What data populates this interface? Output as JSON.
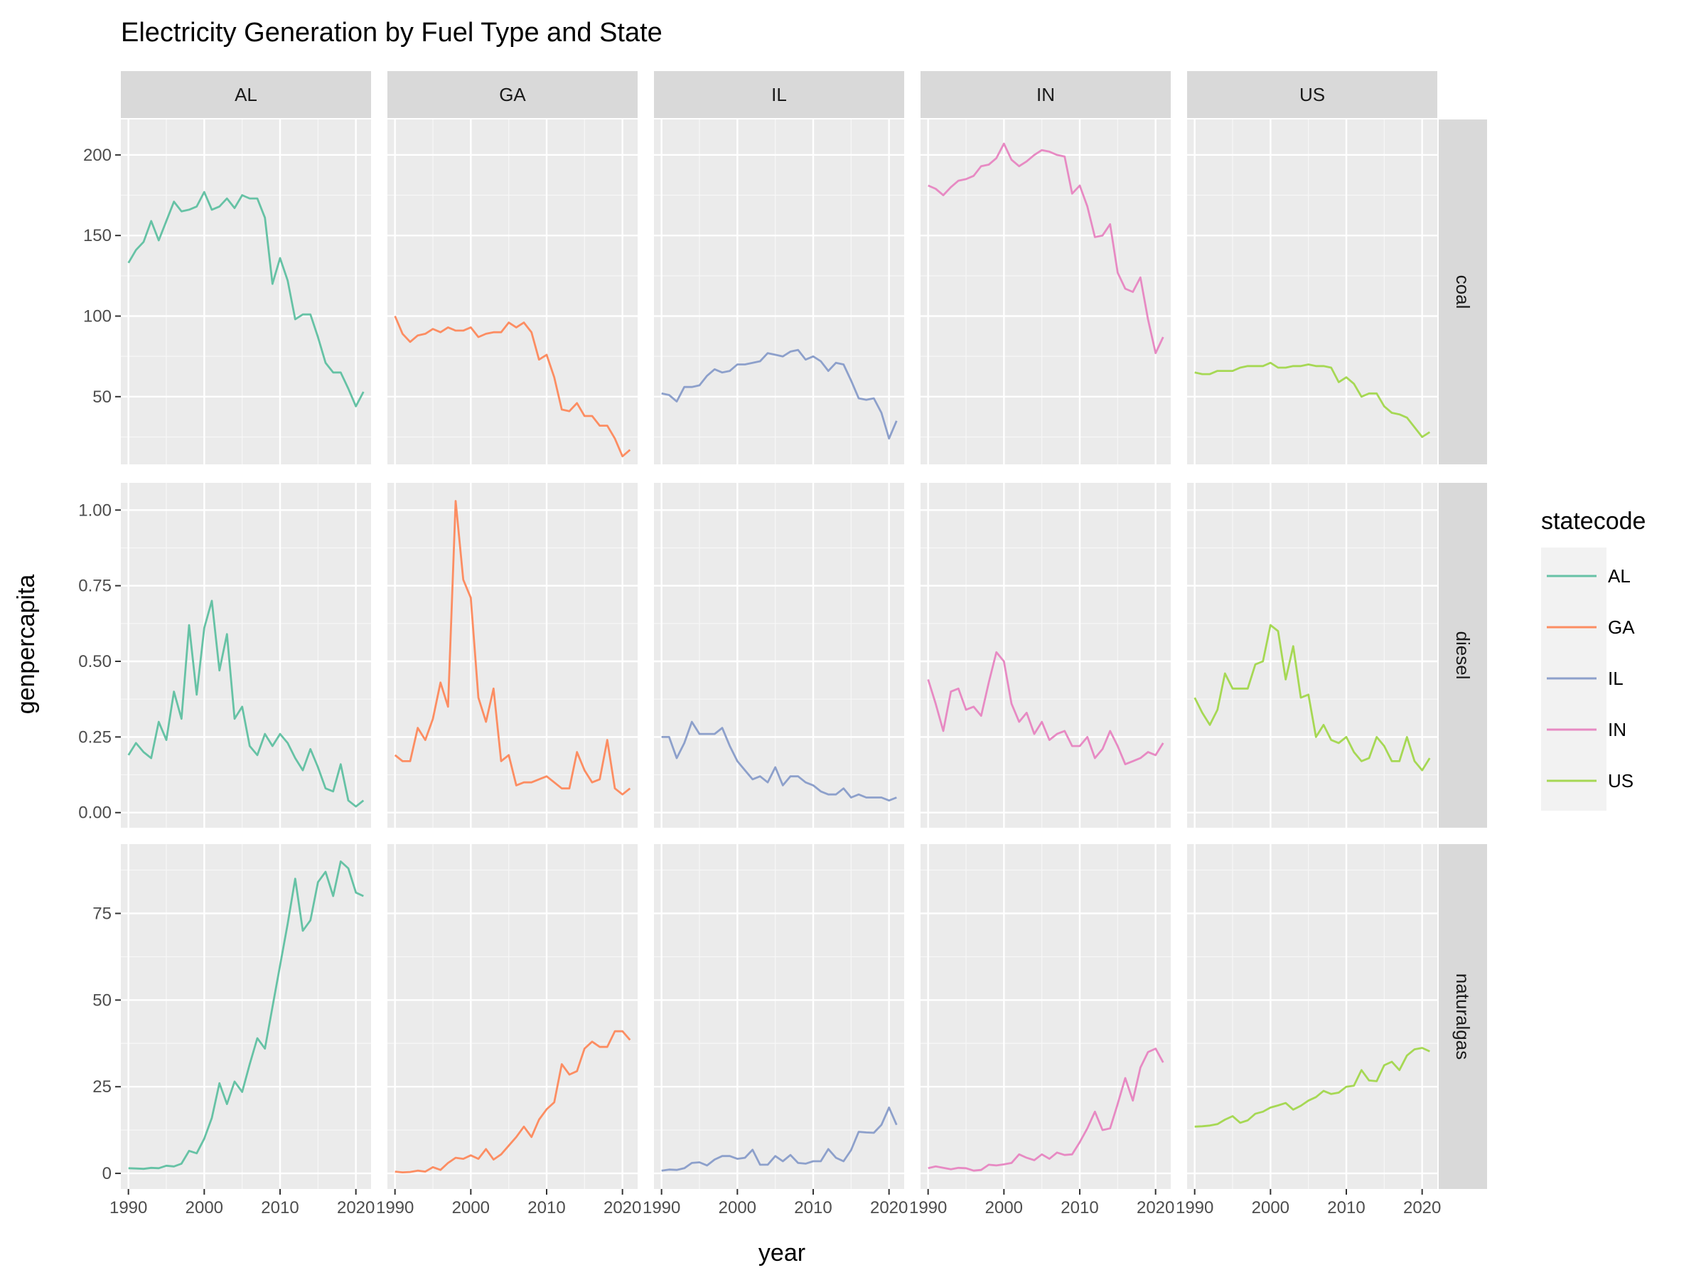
{
  "chart_data": {
    "type": "line",
    "title": "Electricity Generation by Fuel Type and State",
    "xlabel": "year",
    "ylabel": "genpercapita",
    "facet_columns": [
      "AL",
      "GA",
      "IL",
      "IN",
      "US"
    ],
    "facet_rows": [
      "coal",
      "diesel",
      "naturalgas"
    ],
    "x": [
      1990,
      1991,
      1992,
      1993,
      1994,
      1995,
      1996,
      1997,
      1998,
      1999,
      2000,
      2001,
      2002,
      2003,
      2004,
      2005,
      2006,
      2007,
      2008,
      2009,
      2010,
      2011,
      2012,
      2013,
      2014,
      2015,
      2016,
      2017,
      2018,
      2019,
      2020,
      2021
    ],
    "x_ticks": [
      1990,
      2000,
      2010,
      2020
    ],
    "x_tick_labels": [
      "1990",
      "2000",
      "2010",
      "2020"
    ],
    "xlim": [
      1989,
      2022
    ],
    "rows": [
      {
        "name": "coal",
        "ylim": [
          8,
          222
        ],
        "y_ticks": [
          50,
          100,
          150,
          200
        ],
        "y_tick_labels": [
          "50",
          "100",
          "150",
          "200"
        ]
      },
      {
        "name": "diesel",
        "ylim": [
          -0.05,
          1.09
        ],
        "y_ticks": [
          0,
          0.25,
          0.5,
          0.75,
          1.0
        ],
        "y_tick_labels": [
          "0.00",
          "0.25",
          "0.50",
          "0.75",
          "1.00"
        ]
      },
      {
        "name": "naturalgas",
        "ylim": [
          -4.5,
          95
        ],
        "y_ticks": [
          0,
          25,
          50,
          75
        ],
        "y_tick_labels": [
          "0",
          "25",
          "50",
          "75"
        ]
      }
    ],
    "series": [
      {
        "name": "AL",
        "color": "#66C2A5",
        "coal": [
          133,
          141,
          146,
          159,
          147,
          159,
          171,
          165,
          166,
          168,
          177,
          166,
          168,
          173,
          167,
          175,
          173,
          173,
          161,
          120,
          136,
          122,
          98,
          101,
          101,
          87,
          71,
          65,
          65,
          55,
          44,
          53
        ],
        "diesel": [
          0.19,
          0.23,
          0.2,
          0.18,
          0.3,
          0.24,
          0.4,
          0.31,
          0.62,
          0.39,
          0.61,
          0.7,
          0.47,
          0.59,
          0.31,
          0.35,
          0.22,
          0.19,
          0.26,
          0.22,
          0.26,
          0.23,
          0.18,
          0.14,
          0.21,
          0.15,
          0.08,
          0.07,
          0.16,
          0.04,
          0.02,
          0.04
        ],
        "naturalgas": [
          1.5,
          1.4,
          1.3,
          1.6,
          1.5,
          2.2,
          2,
          2.8,
          6.5,
          5.8,
          10,
          16,
          26,
          20,
          26.5,
          23.5,
          31.5,
          39,
          36,
          48,
          60,
          72,
          85,
          70,
          73,
          84,
          87,
          80,
          90,
          88,
          81,
          80
        ]
      },
      {
        "name": "GA",
        "color": "#FC8D62",
        "coal": [
          100,
          89,
          84,
          88,
          89,
          92,
          90,
          93,
          91,
          91,
          93,
          87,
          89,
          90,
          90,
          96,
          93,
          96,
          90,
          73,
          76,
          62,
          42,
          41,
          46,
          38,
          38,
          32,
          32,
          24,
          13,
          17
        ],
        "diesel": [
          0.19,
          0.17,
          0.17,
          0.28,
          0.24,
          0.31,
          0.43,
          0.35,
          1.03,
          0.77,
          0.71,
          0.38,
          0.3,
          0.41,
          0.17,
          0.19,
          0.09,
          0.1,
          0.1,
          0.11,
          0.12,
          0.1,
          0.08,
          0.08,
          0.2,
          0.14,
          0.1,
          0.11,
          0.24,
          0.08,
          0.06,
          0.08
        ],
        "naturalgas": [
          0.5,
          0.3,
          0.4,
          0.8,
          0.5,
          1.8,
          1,
          3,
          4.5,
          4.2,
          5.2,
          4.2,
          7,
          4,
          5.5,
          8,
          10.5,
          13.5,
          10.5,
          15.5,
          18.5,
          20.5,
          31.5,
          28.5,
          29.5,
          36,
          38,
          36.5,
          36.5,
          41,
          41,
          38.5
        ]
      },
      {
        "name": "IL",
        "color": "#8DA0CB",
        "coal": [
          52,
          51,
          47,
          56,
          56,
          57,
          63,
          67,
          65,
          66,
          70,
          70,
          71,
          72,
          77,
          76,
          75,
          78,
          79,
          73,
          75,
          72,
          66,
          71,
          70,
          60,
          49,
          48,
          49,
          40,
          24,
          35
        ],
        "diesel": [
          0.25,
          0.25,
          0.18,
          0.23,
          0.3,
          0.26,
          0.26,
          0.26,
          0.28,
          0.22,
          0.17,
          0.14,
          0.11,
          0.12,
          0.1,
          0.15,
          0.09,
          0.12,
          0.12,
          0.1,
          0.09,
          0.07,
          0.06,
          0.06,
          0.08,
          0.05,
          0.06,
          0.05,
          0.05,
          0.05,
          0.04,
          0.05
        ],
        "naturalgas": [
          0.8,
          1.1,
          1,
          1.5,
          3,
          3.2,
          2.3,
          4,
          5,
          5,
          4.2,
          4.5,
          6.8,
          2.5,
          2.5,
          5,
          3.5,
          5.3,
          3,
          2.8,
          3.5,
          3.5,
          7,
          4.5,
          3.5,
          6.7,
          12,
          11.8,
          11.7,
          14,
          19,
          14
        ]
      },
      {
        "name": "IN",
        "color": "#E78AC3",
        "coal": [
          181,
          179,
          175,
          180,
          184,
          185,
          187,
          193,
          194,
          198,
          207,
          197,
          193,
          196,
          200,
          203,
          202,
          200,
          199,
          176,
          181,
          168,
          149,
          150,
          157,
          127,
          117,
          115,
          124,
          98,
          77,
          87
        ],
        "diesel": [
          0.44,
          0.36,
          0.27,
          0.4,
          0.41,
          0.34,
          0.35,
          0.32,
          0.43,
          0.53,
          0.5,
          0.36,
          0.3,
          0.33,
          0.26,
          0.3,
          0.24,
          0.26,
          0.27,
          0.22,
          0.22,
          0.25,
          0.18,
          0.21,
          0.27,
          0.22,
          0.16,
          0.17,
          0.18,
          0.2,
          0.19,
          0.23
        ],
        "naturalgas": [
          1.5,
          2,
          1.6,
          1.2,
          1.6,
          1.5,
          0.8,
          1,
          2.5,
          2.3,
          2.6,
          3,
          5.5,
          4.5,
          3.8,
          5.5,
          4.2,
          6,
          5.3,
          5.5,
          9,
          13,
          17.8,
          12.5,
          13,
          20,
          27.5,
          21,
          30.5,
          35,
          36,
          32
        ]
      },
      {
        "name": "US",
        "color": "#A6D854",
        "coal": [
          65,
          64,
          64,
          66,
          66,
          66,
          68,
          69,
          69,
          69,
          71,
          68,
          68,
          69,
          69,
          70,
          69,
          69,
          68,
          59,
          62,
          58,
          50,
          52,
          52,
          44,
          40,
          39,
          37,
          31,
          25,
          28
        ],
        "diesel": [
          0.38,
          0.33,
          0.29,
          0.34,
          0.46,
          0.41,
          0.41,
          0.41,
          0.49,
          0.5,
          0.62,
          0.6,
          0.44,
          0.55,
          0.38,
          0.39,
          0.25,
          0.29,
          0.24,
          0.23,
          0.25,
          0.2,
          0.17,
          0.18,
          0.25,
          0.22,
          0.17,
          0.17,
          0.25,
          0.17,
          0.14,
          0.18
        ],
        "naturalgas": [
          13.5,
          13.6,
          13.8,
          14.2,
          15.5,
          16.5,
          14.6,
          15.3,
          17.2,
          17.8,
          19,
          19.6,
          20.3,
          18.4,
          19.5,
          21,
          22,
          23.8,
          22.9,
          23.3,
          25,
          25.3,
          29.8,
          26.8,
          26.6,
          31.2,
          32.2,
          29.8,
          34,
          35.8,
          36.2,
          35.2
        ]
      }
    ],
    "legend": {
      "title": "statecode",
      "position": "right",
      "entries": [
        "AL",
        "GA",
        "IL",
        "IN",
        "US"
      ]
    },
    "grid": true
  }
}
